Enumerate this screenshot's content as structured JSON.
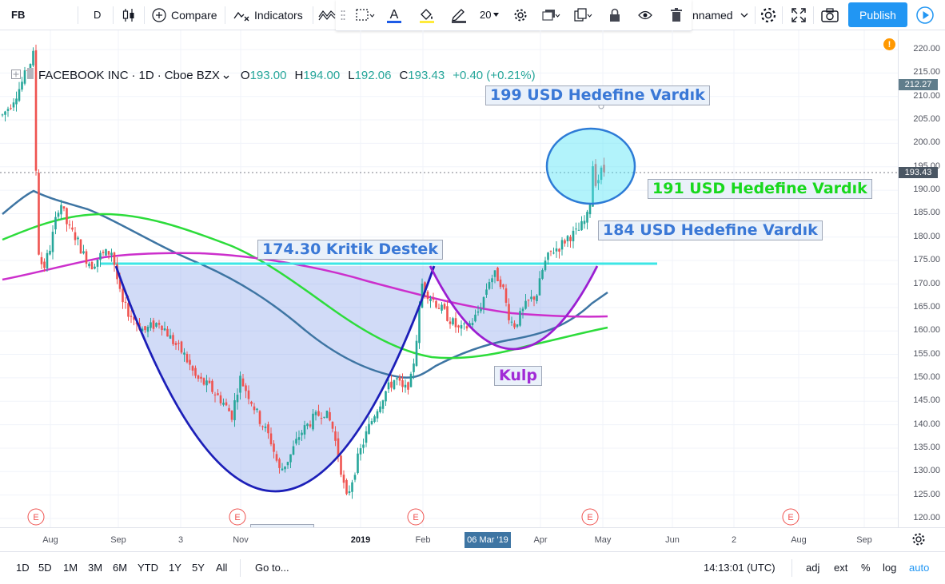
{
  "topbar": {
    "symbol": "FB",
    "interval": "D",
    "compare_label": "Compare",
    "indicators_label": "Indicators",
    "font_size_value": "20",
    "layout_name": "nnamed",
    "publish_label": "Publish"
  },
  "legend": {
    "name": "FACEBOOK INC",
    "interval": "1D",
    "exchange": "Cboe BZX",
    "o_key": "O",
    "o_val": "193.00",
    "h_key": "H",
    "h_val": "194.00",
    "l_key": "L",
    "l_val": "192.06",
    "c_key": "C",
    "c_val": "193.43",
    "change": "+0.40 (+0.21%)"
  },
  "annotations": {
    "a199": "199 USD Hedefine Vardık",
    "a191": "191 USD Hedefine Vardık",
    "a184": "184 USD Hedefine Vardık",
    "a174": "174.30 Kritik Destek",
    "kulp": "Kulp",
    "partial": "Fi"
  },
  "price_axis": {
    "labels": [
      "220.00",
      "215.00",
      "210.00",
      "205.00",
      "200.00",
      "195.00",
      "190.00",
      "185.00",
      "180.00",
      "175.00",
      "170.00",
      "165.00",
      "160.00",
      "155.00",
      "150.00",
      "145.00",
      "140.00",
      "135.00",
      "130.00",
      "125.00",
      "120.00"
    ],
    "tag_high": "212.27",
    "tag_last": "193.43"
  },
  "time_axis": {
    "labels": [
      "Aug",
      "Sep",
      "3",
      "Nov",
      "2019",
      "Feb",
      "Apr",
      "May",
      "Jun",
      "2",
      "Aug",
      "Sep"
    ],
    "cursor_label": "06 Mar '19"
  },
  "earnings_marker": "E",
  "bottombar": {
    "ranges": [
      "1D",
      "5D",
      "1M",
      "3M",
      "6M",
      "YTD",
      "1Y",
      "5Y",
      "All"
    ],
    "goto_label": "Go to...",
    "clock": "14:13:01 (UTC)",
    "adj": "adj",
    "ext": "ext",
    "pct": "%",
    "log": "log",
    "auto": "auto"
  },
  "colors": {
    "accent": "#2196f3",
    "up": "#26a69a",
    "down": "#ef5350",
    "cyan_line": "#3ce6e6",
    "ma_blue": "#3e75a3",
    "ma_green": "#2ddc3b",
    "ma_magenta": "#cc2fcc",
    "cup_blue": "#1c1fb8",
    "handle_purple": "#9b1ed1"
  },
  "chart_data": {
    "type": "candlestick",
    "symbol": "FB",
    "x_labels": [
      "Aug",
      "Sep",
      "3",
      "Nov",
      "2019",
      "Feb",
      "Apr",
      "May",
      "Jun",
      "2",
      "Aug",
      "Sep"
    ],
    "ylim": [
      118,
      222
    ],
    "last_price": 193.43,
    "high_marker": 212.27,
    "support_level": 174.3,
    "segments": [
      {
        "from": "start",
        "price_path": [
          205,
          212,
          218
        ]
      },
      {
        "label": "Aug",
        "price_path": [
          173,
          186,
          180,
          177,
          174,
          176
        ]
      },
      {
        "label": "Sep-Dec",
        "price_path": [
          166,
          163,
          160,
          157,
          150,
          143,
          134,
          140,
          144,
          130,
          124,
          133
        ]
      },
      {
        "label": "2019-Feb",
        "price_path": [
          140,
          148,
          150,
          168,
          166,
          163,
          161,
          168,
          170,
          171
        ]
      },
      {
        "label": "Mar-Apr",
        "price_path": [
          163,
          167,
          165,
          172,
          176,
          179,
          181,
          184
        ]
      },
      {
        "label": "Apr-May",
        "price_path": [
          196,
          190,
          194,
          193
        ]
      }
    ]
  }
}
